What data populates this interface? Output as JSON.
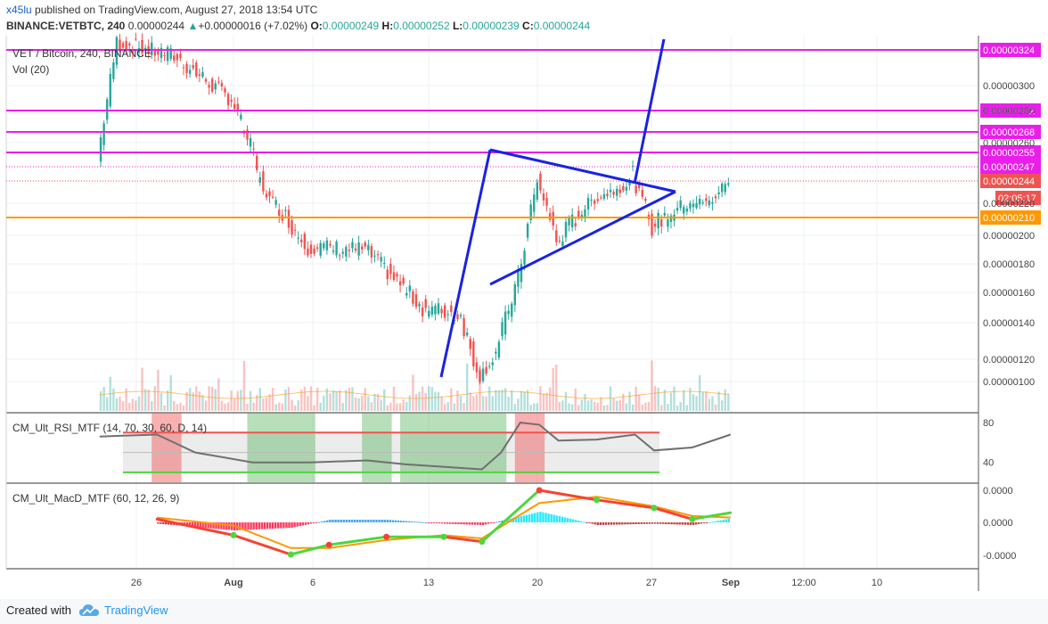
{
  "header": {
    "user": "x45lu",
    "published_text": "published on TradingView.com, August 27, 2018 13:54 UTC",
    "symbol": "BINANCE:VETBTC, 240",
    "last": "0.00000244",
    "change_arrow": "▲",
    "change": "+0.00000016 (+7.02%)",
    "o_label": "O:",
    "o_value": "0.00000249",
    "h_label": "H:",
    "h_value": "0.00000252",
    "l_label": "L:",
    "l_value": "0.00000239",
    "c_label": "C:",
    "c_value": "0.00000244"
  },
  "panes": {
    "main_title": "VET / Bitcoin, 240, BINANCE",
    "volume_title": "Vol (20)",
    "rsi_title": "CM_Ult_RSI_MTF (14, 70, 30, 60, D, 14)",
    "macd_title": "CM_Ult_MacD_MTF (60, 12, 26, 9)"
  },
  "footer": {
    "created_with": "Created with",
    "brand": "TradingView"
  },
  "colors": {
    "up": "#26a69a",
    "down": "#ef5350",
    "magenta": "#e91ee9",
    "orange": "#ff9800",
    "blue": "#1a23e0",
    "badge_red": "#ef5350",
    "rsi_line": "#707070",
    "green": "#4cd73d"
  },
  "chart_data": {
    "type": "candlestick",
    "x_tick_labels": [
      "26",
      "Aug",
      "6",
      "13",
      "20",
      "27",
      "Sep",
      "12:00",
      "10"
    ],
    "y_tick_labels": [
      "0.00000300",
      "0.00000280",
      "0.00000260",
      "0.00000220",
      "0.00000200",
      "0.00000180",
      "0.00000160",
      "0.00000140",
      "0.00000120",
      "0.00000100"
    ],
    "ylim": [
      8.7e-07,
      3.31e-06
    ],
    "horizontal_levels": [
      {
        "price": 3.24e-06,
        "label": "0.00000324",
        "color": "magenta"
      },
      {
        "price": 2.82e-06,
        "label": "0.00000282",
        "color": "magenta"
      },
      {
        "price": 2.68e-06,
        "label": "0.00000268",
        "color": "magenta"
      },
      {
        "price": 2.55e-06,
        "label": "0.00000255",
        "color": "magenta"
      },
      {
        "price": 2.1e-06,
        "label": "0.00000210",
        "color": "orange"
      }
    ],
    "price_badges": [
      {
        "price": 2.47e-06,
        "label": "0.00000247",
        "color": "magenta"
      },
      {
        "price": 2.44e-06,
        "label": "0.00000244",
        "color": "badge_red"
      }
    ],
    "countdown": "02:05:17",
    "key_prices": [
      {
        "date": "2018-07-25",
        "price": 2.5e-06
      },
      {
        "date": "2018-07-26",
        "price": 3.3e-06
      },
      {
        "date": "2018-07-29",
        "price": 3.2e-06
      },
      {
        "date": "2018-08-01",
        "price": 2.9e-06
      },
      {
        "date": "2018-08-03",
        "price": 2.25e-06
      },
      {
        "date": "2018-08-05",
        "price": 1.92e-06
      },
      {
        "date": "2018-08-08",
        "price": 1.9e-06
      },
      {
        "date": "2018-08-11",
        "price": 1.5e-06
      },
      {
        "date": "2018-08-13",
        "price": 1.45e-06
      },
      {
        "date": "2018-08-14",
        "price": 1.05e-06
      },
      {
        "date": "2018-08-15",
        "price": 1.28e-06
      },
      {
        "date": "2018-08-16",
        "price": 1.7e-06
      },
      {
        "date": "2018-08-17",
        "price": 2.4e-06
      },
      {
        "date": "2018-08-18",
        "price": 1.95e-06
      },
      {
        "date": "2018-08-20",
        "price": 2.25e-06
      },
      {
        "date": "2018-08-22",
        "price": 2.43e-06
      },
      {
        "date": "2018-08-23",
        "price": 2.05e-06
      },
      {
        "date": "2018-08-25",
        "price": 2.22e-06
      },
      {
        "date": "2018-08-26",
        "price": 2.2e-06
      },
      {
        "date": "2018-08-27",
        "price": 2.45e-06
      }
    ],
    "trendlines": [
      {
        "from": {
          "date": "2018-08-14",
          "price": 1.03e-06
        },
        "to": {
          "date": "2018-08-17",
          "price": 2.55e-06
        }
      },
      {
        "from": {
          "date": "2018-08-17",
          "price": 2.55e-06
        },
        "to": {
          "date": "2018-08-28",
          "price": 2.26e-06
        }
      },
      {
        "from": {
          "date": "2018-08-16",
          "price": 1.65e-06
        },
        "to": {
          "date": "2018-08-28",
          "price": 2.26e-06
        }
      },
      {
        "from": {
          "date": "2018-08-26",
          "price": 2.31e-06
        },
        "to": {
          "date": "2018-08-27",
          "price": 3.35e-06
        }
      }
    ],
    "volume": {
      "title": "Vol (20)"
    },
    "rsi": {
      "ticks": [
        "80",
        "40"
      ],
      "ylim": [
        20,
        90
      ],
      "upper": 70,
      "lower": 30,
      "zones": [
        {
          "kind": "overbought",
          "from": "2018-07-28",
          "to": "2018-07-29"
        },
        {
          "kind": "oversold",
          "from": "2018-08-02",
          "to": "2018-08-05"
        },
        {
          "kind": "oversold",
          "from": "2018-08-08",
          "to": "2018-08-09"
        },
        {
          "kind": "oversold",
          "from": "2018-08-10",
          "to": "2018-08-15"
        },
        {
          "kind": "overbought",
          "from": "2018-08-16",
          "to": "2018-08-17"
        }
      ],
      "key_values": [
        {
          "date": "2018-07-25",
          "value": 66
        },
        {
          "date": "2018-07-28",
          "value": 68
        },
        {
          "date": "2018-07-30",
          "value": 50
        },
        {
          "date": "2018-08-02",
          "value": 40
        },
        {
          "date": "2018-08-05",
          "value": 40
        },
        {
          "date": "2018-08-08",
          "value": 42
        },
        {
          "date": "2018-08-10",
          "value": 38
        },
        {
          "date": "2018-08-14",
          "value": 33
        },
        {
          "date": "2018-08-15",
          "value": 50
        },
        {
          "date": "2018-08-16",
          "value": 80
        },
        {
          "date": "2018-08-17",
          "value": 78
        },
        {
          "date": "2018-08-18",
          "value": 62
        },
        {
          "date": "2018-08-20",
          "value": 63
        },
        {
          "date": "2018-08-22",
          "value": 68
        },
        {
          "date": "2018-08-23",
          "value": 52
        },
        {
          "date": "2018-08-25",
          "value": 55
        },
        {
          "date": "2018-08-27",
          "value": 68
        }
      ]
    },
    "macd": {
      "ticks": [
        "0.0000",
        "0.0000",
        "-0.0000"
      ],
      "key_values": [
        {
          "date": "2018-07-28",
          "macd": 0.1,
          "signal": 0.15
        },
        {
          "date": "2018-08-01",
          "macd": -0.4,
          "signal": -0.1
        },
        {
          "date": "2018-08-04",
          "macd": -1.0,
          "signal": -0.8
        },
        {
          "date": "2018-08-06",
          "macd": -0.7,
          "signal": -0.8
        },
        {
          "date": "2018-08-09",
          "macd": -0.45,
          "signal": -0.55
        },
        {
          "date": "2018-08-12",
          "macd": -0.45,
          "signal": -0.4
        },
        {
          "date": "2018-08-14",
          "macd": -0.6,
          "signal": -0.5
        },
        {
          "date": "2018-08-17",
          "macd": 1.0,
          "signal": 0.6
        },
        {
          "date": "2018-08-20",
          "macd": 0.7,
          "signal": 0.8
        },
        {
          "date": "2018-08-23",
          "macd": 0.45,
          "signal": 0.5
        },
        {
          "date": "2018-08-25",
          "macd": 0.1,
          "signal": 0.2
        },
        {
          "date": "2018-08-27",
          "macd": 0.3,
          "signal": 0.15
        }
      ]
    }
  }
}
